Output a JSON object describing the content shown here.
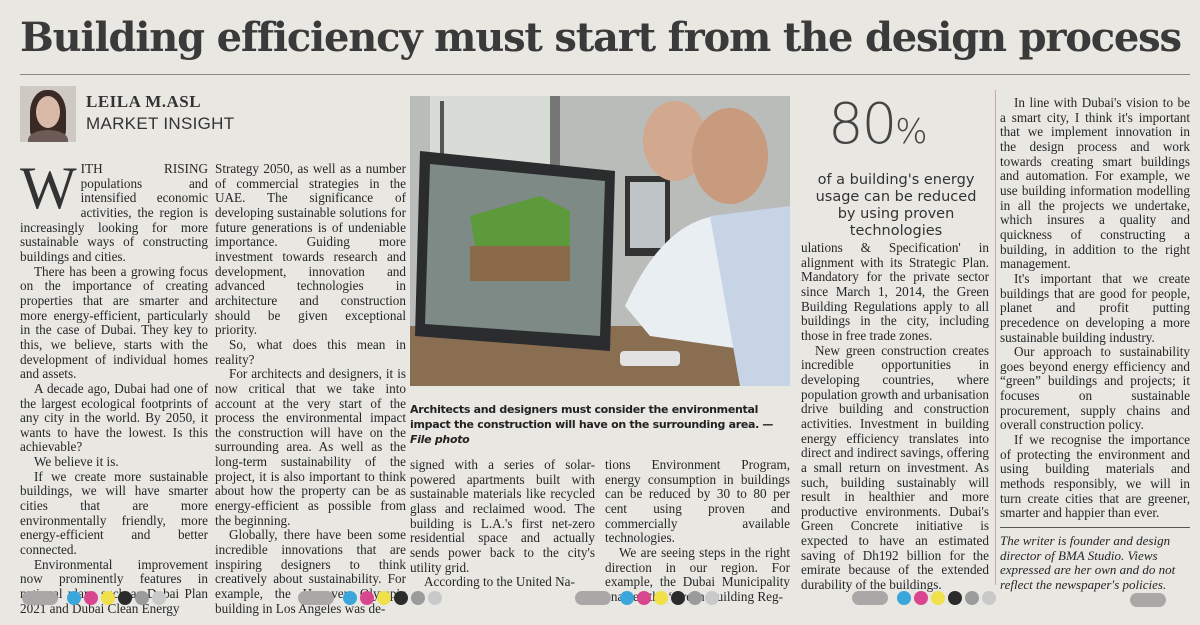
{
  "headline": "Building efficiency must start from the design process",
  "byline": {
    "name": "LEILA M.ASL",
    "role": "MARKET INSIGHT"
  },
  "column1": {
    "dropcap": "W",
    "lead_smallcaps": "ITH RISING",
    "lead_rest": " populations and intensified economic activities, the region is increasingly looking for more sustainable ways of constructing buildings and cities.",
    "paragraphs": [
      "There has been a growing focus on the importance of creating properties that are smarter and more energy-efficient, particularly in the case of Dubai. They key to this, we believe, starts with the development of individual homes and assets.",
      "A decade ago, Dubai had one of the largest ecological footprints of any city in the world. By 2050, it wants to have the lowest. Is this achievable?",
      "We believe it is.",
      "If we create more sustainable buildings, we will have smarter cities that are more environmentally friendly, more energy-efficient and better connected.",
      "Environmental improvement now prominently features in national plans such as Dubai Plan 2021 and Dubai Clean Energy"
    ]
  },
  "column2": {
    "continuation": "Strategy 2050, as well as a number of commercial strategies in the UAE. The significance of developing sustainable solutions for future generations is of undeniable importance. Guiding more investment towards research and development, innovation and advanced technologies in architecture and construction should be given exceptional priority.",
    "paragraphs": [
      "So, what does this mean in reality?",
      "For architects and designers, it is now critical that we take into account at the very start of the process the environmental impact the construction will have on the surrounding area. As well as the long-term sustainability of the project, it is also important to think about how the property can be as energy-efficient as possible from the beginning.",
      "Globally, there have been some incredible innovations that are inspiring designers to think creatively about sustainability. For example, the Hanover Olympic building in Los Angeles was de-"
    ]
  },
  "photo": {
    "caption": "Architects and designers must consider the environmental impact the construction will have on the surrounding area.",
    "credit": "— File photo"
  },
  "column3": {
    "continuation": "signed with a series of solar-powered apartments built with sustainable materials like recycled glass and reclaimed wood. The building is L.A.'s first net-zero residential space and actually sends power back to the city's utility grid.",
    "paragraphs": [
      "According to the United Na-"
    ]
  },
  "column4": {
    "continuation": "tions Environment Program, energy consumption in buildings can be reduced by 30 to 80 per cent using proven and commercially available technologies.",
    "paragraphs": [
      "We are seeing steps in the right direction in our region. For example, the Dubai Municipality enacted the ‘Green Building Reg-"
    ]
  },
  "pullquote": {
    "number": "80",
    "unit": "%",
    "text": "of a building's energy usage can be reduced by using proven technologies"
  },
  "column5": {
    "continuation": "ulations & Specification' in alignment with its Strategic Plan. Mandatory for the private sector since March 1, 2014, the Green Building Regulations apply to all buildings in the city, including those in free trade zones.",
    "paragraphs": [
      "New green construction creates incredible opportunities in developing countries, where population growth and urbanisation drive building and construction activities. Investment in building energy efficiency translates into direct and indirect savings, offering a small return on investment. As such, building sustainably will result in healthier and more productive environments. Dubai's Green Concrete initiative is expected to have an estimated saving of Dh192 billion for the emirate because of the extended durability of the buildings."
    ]
  },
  "column6": {
    "paragraphs": [
      "In line with Dubai's vision to be a smart city, I think it's important that we implement innovation in the design process and work towards creating smart buildings and automation. For example, we use building information modelling in all the projects we undertake, which insures a quality and quickness of constructing a building, in addition to the right management.",
      "It's important that we create buildings that are good for people, planet and profit putting precedence on developing a more sustainable building industry.",
      "Our approach to sustainability goes beyond energy efficiency and “green” buildings and projects; it focuses on sustainable procurement, supply chains and overall construction policy.",
      "If we recognise the importance of protecting the environment and using building materials and methods responsibly, we will in turn create cities that are greener, smarter and happier than ever."
    ],
    "note": "The writer is founder and design director of BMA Studio. Views expressed are her own and do not reflect the newspaper's policies."
  },
  "registration_colors": [
    "#3aa6dc",
    "#d9468f",
    "#f0e04a",
    "#2b2b2b",
    "#9b9b9b",
    "#c9c9c9"
  ]
}
